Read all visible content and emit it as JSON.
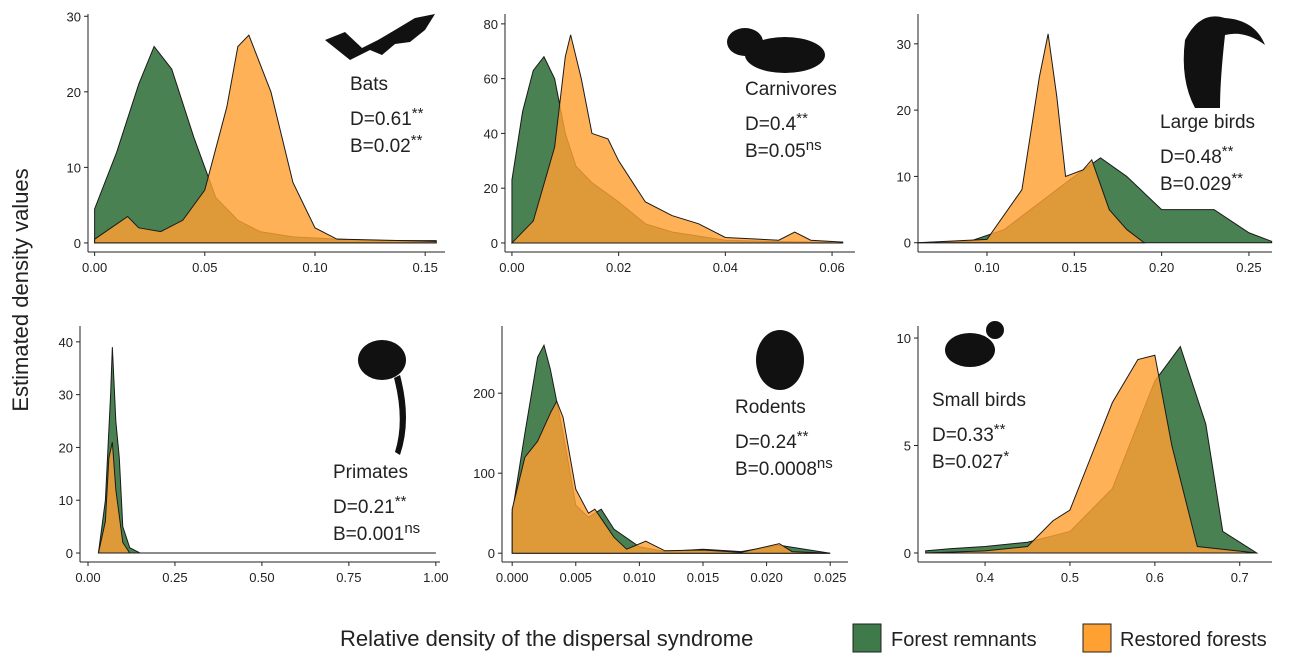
{
  "ylabel": "Estimated density values",
  "xlabel": "Relative density of the dispersal syndrome",
  "chart_data": [
    {
      "type": "area",
      "label": "Bats",
      "stats": [
        {
          "text": "D=0.61",
          "sup": "**"
        },
        {
          "text": "B=0.02",
          "sup": "**"
        }
      ],
      "xlim": [
        -0.003,
        0.159
      ],
      "ylim": [
        -1.2,
        30.3
      ],
      "xticks": [
        {
          "value": 0,
          "label": "0.00"
        },
        {
          "value": 0.05,
          "label": "0.05"
        },
        {
          "value": 0.1,
          "label": "0.10"
        },
        {
          "value": 0.15,
          "label": "0.15"
        }
      ],
      "yticks": [
        0,
        10,
        20,
        30
      ],
      "series": [
        {
          "name": "Forest remnants",
          "color": "#3f7a4a",
          "x": [
            0,
            0.01,
            0.02,
            0.027,
            0.035,
            0.045,
            0.055,
            0.065,
            0.075,
            0.09,
            0.11,
            0.13,
            0.155
          ],
          "values": [
            4.5,
            12,
            21,
            26,
            23,
            14,
            6,
            3,
            1.5,
            0.8,
            0.5,
            0.3,
            0.3
          ]
        },
        {
          "name": "Restored forests",
          "color": "#ffa033",
          "x": [
            0,
            0.01,
            0.015,
            0.02,
            0.03,
            0.04,
            0.05,
            0.06,
            0.065,
            0.07,
            0.08,
            0.09,
            0.1,
            0.11,
            0.14,
            0.155
          ],
          "values": [
            0.5,
            2.5,
            3.5,
            2,
            1.5,
            3,
            7,
            18,
            26,
            27.5,
            20,
            8,
            2,
            0.5,
            0.3,
            0.2
          ]
        }
      ]
    },
    {
      "type": "area",
      "label": "Carnivores",
      "stats": [
        {
          "text": "D=0.4",
          "sup": "**"
        },
        {
          "text": "B=0.05",
          "sup": "ns"
        }
      ],
      "xlim": [
        -0.0013,
        0.0643
      ],
      "ylim": [
        -3.3,
        83.6
      ],
      "xticks": [
        {
          "value": 0,
          "label": "0.00"
        },
        {
          "value": 0.02,
          "label": "0.02"
        },
        {
          "value": 0.04,
          "label": "0.04"
        },
        {
          "value": 0.06,
          "label": "0.06"
        }
      ],
      "yticks": [
        0,
        20,
        40,
        60,
        80
      ],
      "series": [
        {
          "name": "Forest remnants",
          "color": "#3f7a4a",
          "x": [
            0,
            0.002,
            0.004,
            0.006,
            0.008,
            0.01,
            0.012,
            0.015,
            0.02,
            0.025,
            0.03,
            0.04,
            0.05,
            0.06
          ],
          "values": [
            23,
            48,
            63,
            68,
            60,
            40,
            28,
            22,
            15,
            7,
            4,
            1,
            0.5,
            0.2
          ]
        },
        {
          "name": "Restored forests",
          "color": "#ffa033",
          "x": [
            0,
            0.004,
            0.008,
            0.01,
            0.011,
            0.013,
            0.015,
            0.018,
            0.02,
            0.025,
            0.03,
            0.035,
            0.04,
            0.05,
            0.053,
            0.056,
            0.062
          ],
          "values": [
            0,
            8,
            35,
            68,
            76,
            60,
            40,
            38,
            30,
            15,
            10,
            7,
            2,
            1,
            4,
            1,
            0.3
          ]
        }
      ]
    },
    {
      "type": "area",
      "label": "Large birds",
      "stats": [
        {
          "text": "D=0.48",
          "sup": "**"
        },
        {
          "text": "B=0.029",
          "sup": "**"
        }
      ],
      "xlim": [
        0.0605,
        0.2632
      ],
      "ylim": [
        -1.4,
        34.5
      ],
      "xticks": [
        {
          "value": 0.1,
          "label": "0.10"
        },
        {
          "value": 0.15,
          "label": "0.15"
        },
        {
          "value": 0.2,
          "label": "0.20"
        },
        {
          "value": 0.25,
          "label": "0.25"
        }
      ],
      "yticks": [
        0,
        10,
        20,
        30
      ],
      "series": [
        {
          "name": "Forest remnants",
          "color": "#3f7a4a",
          "x": [
            0.06,
            0.09,
            0.11,
            0.13,
            0.15,
            0.165,
            0.18,
            0.2,
            0.215,
            0.23,
            0.25,
            0.263
          ],
          "values": [
            0,
            0.2,
            2,
            6,
            10,
            12.8,
            10,
            5,
            5,
            5,
            1.5,
            0.2
          ]
        },
        {
          "name": "Restored forests",
          "color": "#ffa033",
          "x": [
            0.06,
            0.1,
            0.12,
            0.13,
            0.135,
            0.14,
            0.145,
            0.155,
            0.16,
            0.17,
            0.18,
            0.19
          ],
          "values": [
            0,
            0.5,
            8,
            25,
            31.5,
            22,
            10,
            11,
            12.5,
            5,
            2,
            0
          ]
        }
      ]
    },
    {
      "type": "area",
      "label": "Primates",
      "stats": [
        {
          "text": "D=0.21",
          "sup": "**"
        },
        {
          "text": "B=0.001",
          "sup": "ns"
        }
      ],
      "xlim": [
        -0.023,
        1.012
      ],
      "ylim": [
        -1.7,
        43
      ],
      "xticks": [
        {
          "value": 0,
          "label": "0.00"
        },
        {
          "value": 0.25,
          "label": "0.25"
        },
        {
          "value": 0.5,
          "label": "0.50"
        },
        {
          "value": 0.75,
          "label": "0.75"
        },
        {
          "value": 1,
          "label": "1.00"
        }
      ],
      "yticks": [
        0,
        10,
        20,
        30,
        40
      ],
      "series": [
        {
          "name": "Forest remnants",
          "color": "#3f7a4a",
          "x": [
            0.03,
            0.05,
            0.065,
            0.07,
            0.08,
            0.09,
            0.1,
            0.12,
            0.15,
            1.0
          ],
          "values": [
            0,
            10,
            30,
            39,
            25,
            18,
            5,
            1,
            0,
            0
          ]
        },
        {
          "name": "Restored forests",
          "color": "#ffa033",
          "x": [
            0.03,
            0.05,
            0.06,
            0.07,
            0.08,
            0.1,
            0.12,
            1.0
          ],
          "values": [
            0,
            6,
            18,
            21,
            12,
            2,
            0,
            0
          ]
        }
      ]
    },
    {
      "type": "area",
      "label": "Rodents",
      "stats": [
        {
          "text": "D=0.24",
          "sup": "**"
        },
        {
          "text": "B=0.0008",
          "sup": "ns"
        }
      ],
      "xlim": [
        -0.0008,
        0.0264
      ],
      "ylim": [
        -11,
        284
      ],
      "xticks": [
        {
          "value": 0,
          "label": "0.000"
        },
        {
          "value": 0.005,
          "label": "0.005"
        },
        {
          "value": 0.01,
          "label": "0.010"
        },
        {
          "value": 0.015,
          "label": "0.015"
        },
        {
          "value": 0.02,
          "label": "0.020"
        },
        {
          "value": 0.025,
          "label": "0.025"
        }
      ],
      "yticks": [
        0,
        100,
        200
      ],
      "series": [
        {
          "name": "Forest remnants",
          "color": "#3f7a4a",
          "x": [
            0,
            0.001,
            0.002,
            0.0025,
            0.003,
            0.004,
            0.005,
            0.006,
            0.007,
            0.008,
            0.01,
            0.012,
            0.015,
            0.018,
            0.021,
            0.025
          ],
          "values": [
            50,
            150,
            245,
            260,
            230,
            150,
            60,
            45,
            55,
            30,
            8,
            2,
            5,
            2,
            10,
            0
          ]
        },
        {
          "name": "Restored forests",
          "color": "#ffa033",
          "x": [
            0,
            0.001,
            0.002,
            0.003,
            0.0035,
            0.004,
            0.005,
            0.006,
            0.0065,
            0.008,
            0.009,
            0.0105,
            0.012,
            0.015,
            0.018,
            0.021,
            0.022,
            0.025
          ],
          "values": [
            55,
            120,
            140,
            175,
            190,
            170,
            80,
            50,
            55,
            20,
            5,
            15,
            3,
            4,
            1,
            12,
            2,
            0
          ]
        }
      ]
    },
    {
      "type": "area",
      "label": "Small birds",
      "stats": [
        {
          "text": "D=0.33",
          "sup": "**"
        },
        {
          "text": "B=0.027",
          "sup": "*"
        }
      ],
      "xlim": [
        0.321,
        0.738
      ],
      "ylim": [
        -0.42,
        10.56
      ],
      "xticks": [
        0.4,
        0.5,
        0.6,
        0.7
      ],
      "yticks": [
        0,
        5,
        10
      ],
      "series": [
        {
          "name": "Forest remnants",
          "color": "#3f7a4a",
          "x": [
            0.33,
            0.36,
            0.4,
            0.45,
            0.5,
            0.55,
            0.58,
            0.6,
            0.63,
            0.66,
            0.68,
            0.72
          ],
          "values": [
            0.1,
            0.2,
            0.3,
            0.5,
            1,
            3,
            6,
            8,
            9.6,
            6,
            1,
            0
          ]
        },
        {
          "name": "Restored forests",
          "color": "#ffa033",
          "x": [
            0.33,
            0.4,
            0.45,
            0.48,
            0.5,
            0.52,
            0.55,
            0.58,
            0.6,
            0.62,
            0.65,
            0.72
          ],
          "values": [
            0,
            0.1,
            0.3,
            1.5,
            2,
            4,
            7,
            9,
            9.2,
            5,
            0.3,
            0
          ]
        }
      ]
    }
  ]
}
